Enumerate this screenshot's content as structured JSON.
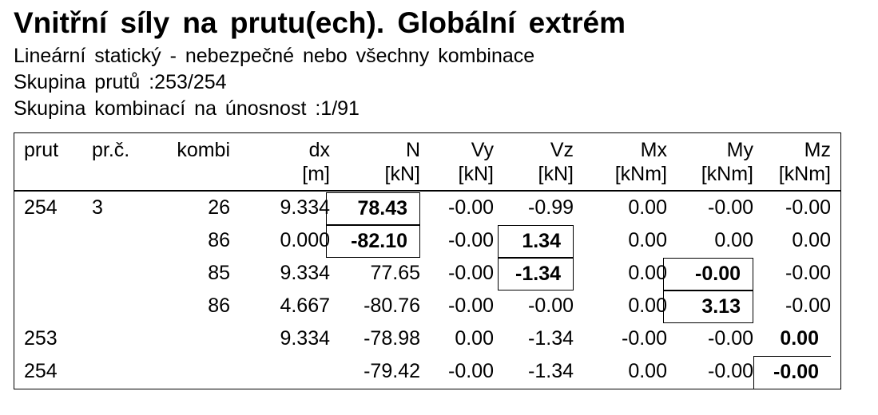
{
  "title": "Vnitřní síly na prutu(ech). Globální extrém",
  "subtitle_lines": [
    "Lineární statický - nebezpečné nebo všechny kombinace",
    "Skupina prutů :253/254",
    "Skupina kombinací na únosnost :1/91"
  ],
  "table": {
    "headers": [
      {
        "name": "prut",
        "unit": ""
      },
      {
        "name": "pr.č.",
        "unit": ""
      },
      {
        "name": "kombi",
        "unit": ""
      },
      {
        "name": "dx",
        "unit": "[m]"
      },
      {
        "name": "N",
        "unit": "[kN]"
      },
      {
        "name": "Vy",
        "unit": "[kN]"
      },
      {
        "name": "Vz",
        "unit": "[kN]"
      },
      {
        "name": "Mx",
        "unit": "[kNm]"
      },
      {
        "name": "My",
        "unit": "[kNm]"
      },
      {
        "name": "Mz",
        "unit": "[kNm]"
      }
    ],
    "rows": [
      [
        "254",
        "3",
        "26",
        "9.334",
        "78.43",
        "-0.00",
        "-0.99",
        "0.00",
        "-0.00",
        "-0.00"
      ],
      [
        "",
        "",
        "86",
        "0.000",
        "-82.10",
        "-0.00",
        "1.34",
        "0.00",
        "0.00",
        "0.00"
      ],
      [
        "",
        "",
        "85",
        "9.334",
        "77.65",
        "-0.00",
        "-1.34",
        "0.00",
        "-0.00",
        "-0.00"
      ],
      [
        "",
        "",
        "86",
        "4.667",
        "-80.76",
        "-0.00",
        "-0.00",
        "0.00",
        "3.13",
        "-0.00"
      ],
      [
        "253",
        "",
        "",
        "9.334",
        "-78.98",
        "0.00",
        "-1.34",
        "-0.00",
        "-0.00",
        "0.00"
      ],
      [
        "254",
        "",
        "",
        "",
        "-79.42",
        "-0.00",
        "-1.34",
        "0.00",
        "-0.00",
        "-0.00"
      ]
    ],
    "highlighted_extremes": [
      {
        "row": 0,
        "col": 4
      },
      {
        "row": 1,
        "col": 4
      },
      {
        "row": 1,
        "col": 6
      },
      {
        "row": 2,
        "col": 6
      },
      {
        "row": 2,
        "col": 8
      },
      {
        "row": 3,
        "col": 8
      },
      {
        "row": 4,
        "col": 9
      },
      {
        "row": 5,
        "col": 9
      }
    ]
  }
}
